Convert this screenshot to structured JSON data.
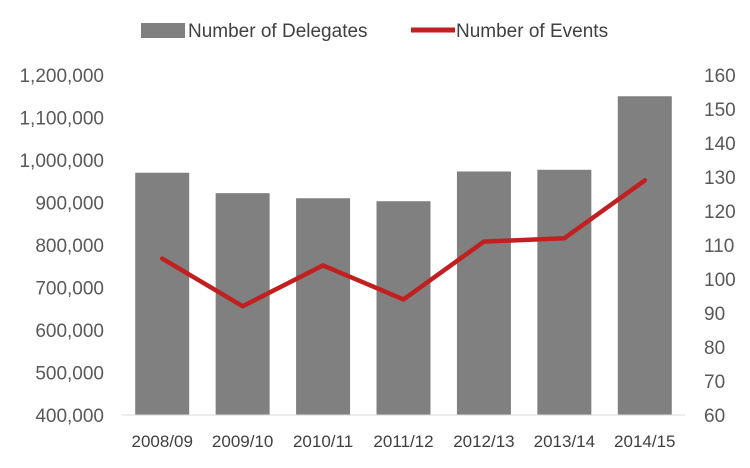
{
  "chart_data": {
    "type": "bar",
    "categories": [
      "2008/09",
      "2009/10",
      "2010/11",
      "2011/12",
      "2012/13",
      "2013/14",
      "2014/15"
    ],
    "series": [
      {
        "name": "Number of Delegates",
        "type": "bar",
        "axis": "left",
        "color": "#808080",
        "values": [
          970000,
          922000,
          910000,
          903000,
          973000,
          977000,
          1150000
        ]
      },
      {
        "name": "Number of Events",
        "type": "line",
        "axis": "right",
        "color": "#C0201F",
        "values": [
          106,
          92,
          104,
          94,
          111,
          112,
          129
        ]
      }
    ],
    "y_left": {
      "range": [
        400000,
        1200000
      ],
      "ticks": [
        "400,000",
        "500,000",
        "600,000",
        "700,000",
        "800,000",
        "900,000",
        "1,000,000",
        "1,100,000",
        "1,200,000"
      ]
    },
    "y_right": {
      "range": [
        60,
        160
      ],
      "ticks": [
        "60",
        "70",
        "80",
        "90",
        "100",
        "110",
        "120",
        "130",
        "140",
        "150",
        "160"
      ]
    },
    "legend_position": "top",
    "grid": false
  }
}
